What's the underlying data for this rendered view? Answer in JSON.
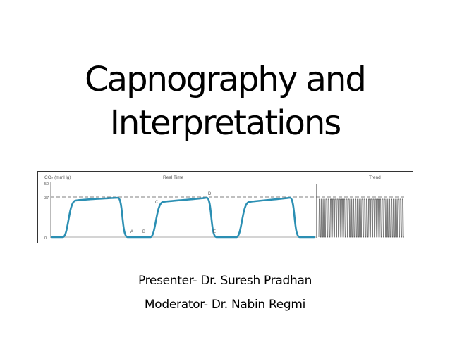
{
  "slide": {
    "title_line1": "Capnography and",
    "title_line2": "Interpretations",
    "presenter": "Presenter- Dr. Suresh Pradhan",
    "moderator": "Moderator- Dr. Nabin Regmi"
  },
  "capnogram": {
    "axis_label": "CO₂ (mmHg)",
    "section_real_time": "Real Time",
    "section_trend": "Trend",
    "tick_50": "50",
    "tick_37": "37",
    "tick_0": "0",
    "point_a": "A",
    "point_b": "B",
    "point_c": "C",
    "point_d": "D",
    "point_e": "E",
    "waveform_color": "#2b8fb3",
    "trend_cycles": 38
  }
}
